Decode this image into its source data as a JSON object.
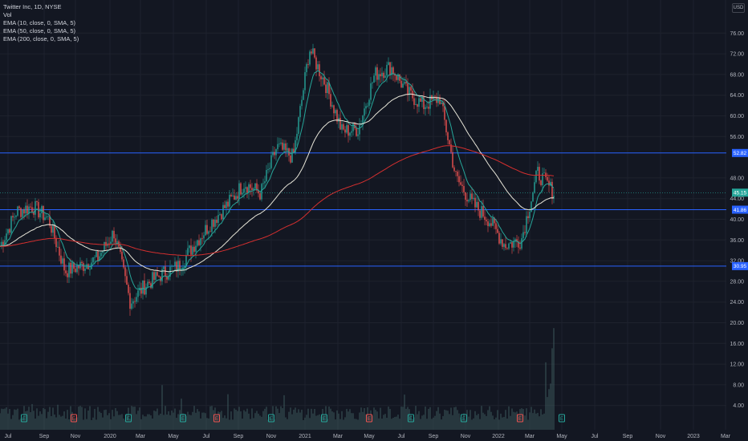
{
  "legend": {
    "symbol": "Twitter Inc, 1D, NYSE",
    "vol": "Vol",
    "ema10": "EMA (10, close, 0, SMA, 5)",
    "ema50": "EMA (50, close, 0, SMA, 5)",
    "ema200": "EMA (200, close, 0, SMA, 5)"
  },
  "currency": "USD",
  "chart_data": {
    "type": "candlestick",
    "title": "Twitter Inc, 1D, NYSE",
    "price_axis": {
      "ticks": [
        "76.00",
        "72.00",
        "68.00",
        "64.00",
        "60.00",
        "56.00",
        "48.00",
        "44.00",
        "40.00",
        "36.00",
        "32.00",
        "28.00",
        "24.00",
        "20.00",
        "16.00",
        "12.00",
        "8.00",
        "4.00"
      ],
      "ylim": [
        0,
        79
      ]
    },
    "time_axis": [
      "Jul",
      "Sep",
      "Nov",
      "2020",
      "Mar",
      "May",
      "Jul",
      "Sep",
      "Nov",
      "2021",
      "Mar",
      "May",
      "Jul",
      "Sep",
      "Nov",
      "2022",
      "Mar",
      "May",
      "Jul",
      "Sep",
      "Nov",
      "2023",
      "Mar"
    ],
    "price_series": {
      "name": "Close",
      "points": [
        [
          "Jul",
          34.8
        ],
        [
          "Aug",
          41.5
        ],
        [
          "Sep",
          42.5
        ],
        [
          "Oct",
          40.0
        ],
        [
          "Nov",
          30.0
        ],
        [
          "Dec",
          31.0
        ],
        [
          "2020",
          32.5
        ],
        [
          "Feb",
          37.5
        ],
        [
          "Mar",
          24.0
        ],
        [
          "Apr",
          27.5
        ],
        [
          "May",
          29.5
        ],
        [
          "Jun",
          31.0
        ],
        [
          "Jul",
          35.5
        ],
        [
          "Aug",
          39.5
        ],
        [
          "Sep",
          43.0
        ],
        [
          "Oct",
          47.0
        ],
        [
          "Nov",
          45.0
        ],
        [
          "Dec",
          54.0
        ],
        [
          "2021",
          52.0
        ],
        [
          "Feb",
          73.0
        ],
        [
          "Mar",
          66.0
        ],
        [
          "Apr",
          57.0
        ],
        [
          "May",
          57.5
        ],
        [
          "Jun",
          68.0
        ],
        [
          "Jul",
          69.5
        ],
        [
          "Aug",
          64.5
        ],
        [
          "Sep",
          62.0
        ],
        [
          "Oct",
          63.5
        ],
        [
          "Nov",
          48.0
        ],
        [
          "Dec",
          43.0
        ],
        [
          "2022",
          40.0
        ],
        [
          "Feb",
          35.0
        ],
        [
          "Mar",
          36.0
        ],
        [
          "Apr",
          49.0
        ],
        [
          "Apr end",
          45.15
        ]
      ]
    },
    "indicators": [
      {
        "name": "EMA (10, close, 0, SMA, 5)",
        "color": "#26a69a"
      },
      {
        "name": "EMA (50, close, 0, SMA, 5)",
        "color": "#e8e6d9"
      },
      {
        "name": "EMA (200, close, 0, SMA, 5)",
        "color": "#d32f2f"
      }
    ],
    "horizontal_levels": [
      {
        "label": "52.82",
        "value": 52.82,
        "color": "#2962ff"
      },
      {
        "label": "41.86",
        "value": 41.86,
        "color": "#2962ff"
      },
      {
        "label": "30.95",
        "value": 30.95,
        "color": "#2962ff"
      }
    ],
    "last_price": {
      "label": "45.15",
      "value": 45.15,
      "color": "#26a69a"
    },
    "volume_peak": 22,
    "colors": {
      "up": "#26a69a",
      "down": "#ef5350",
      "background": "#131722",
      "grid": "#1e222d"
    }
  }
}
